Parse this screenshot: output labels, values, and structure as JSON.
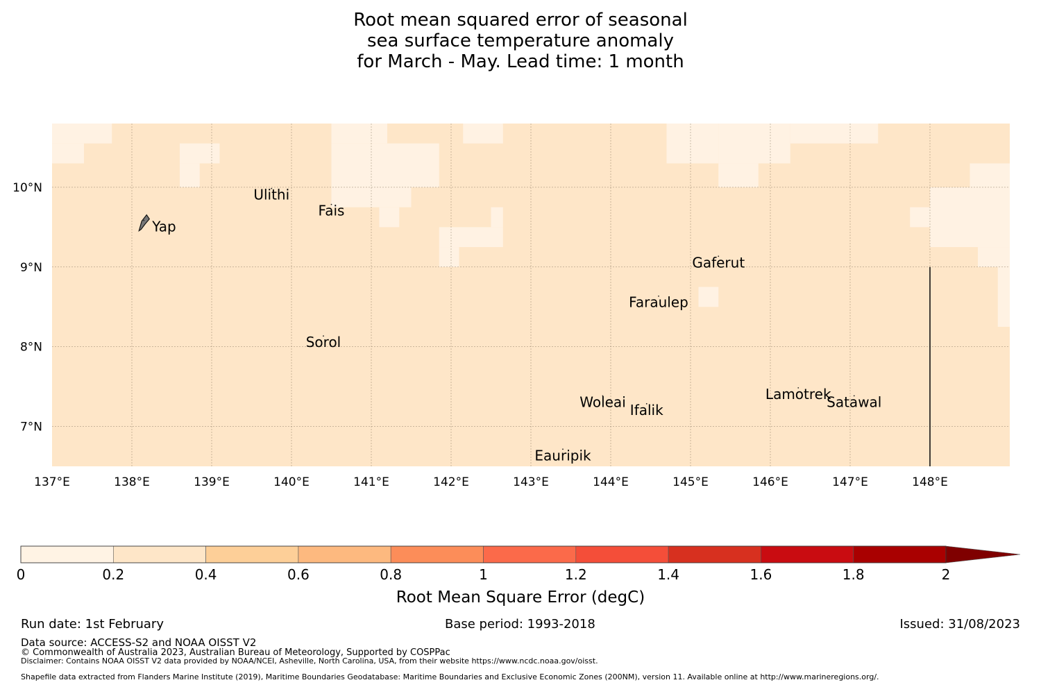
{
  "title": {
    "line1": "Root mean squared error of seasonal",
    "line2": "sea surface temperature anomaly",
    "line3": "for March - May. Lead time: 1 month"
  },
  "map": {
    "lon_range": [
      137,
      149
    ],
    "lat_range": [
      6.5,
      10.8
    ],
    "lon_ticks": [
      137,
      138,
      139,
      140,
      141,
      142,
      143,
      144,
      145,
      146,
      147,
      148
    ],
    "lat_ticks": [
      10,
      9,
      8,
      7
    ],
    "lon_tick_labels": [
      "137°E",
      "138°E",
      "139°E",
      "140°E",
      "141°E",
      "142°E",
      "143°E",
      "144°E",
      "145°E",
      "146°E",
      "147°E",
      "148°E"
    ],
    "lat_tick_labels": [
      "10°N",
      "9°N",
      "8°N",
      "7°N"
    ],
    "background_color": "#fee6c8",
    "light_color": "#fff2e3",
    "light_cells": [
      [
        137.0,
        137.75,
        10.55,
        10.8
      ],
      [
        137.0,
        137.4,
        10.3,
        10.55
      ],
      [
        138.6,
        139.1,
        10.3,
        10.55
      ],
      [
        138.6,
        138.85,
        10.0,
        10.3
      ],
      [
        140.5,
        141.2,
        10.55,
        10.8
      ],
      [
        140.5,
        141.85,
        10.0,
        10.55
      ],
      [
        140.5,
        141.5,
        9.75,
        10.0
      ],
      [
        141.1,
        141.35,
        9.5,
        9.75
      ],
      [
        142.15,
        142.65,
        10.55,
        10.8
      ],
      [
        142.5,
        142.65,
        9.5,
        9.75
      ],
      [
        141.85,
        142.65,
        9.25,
        9.5
      ],
      [
        141.85,
        142.1,
        9.0,
        9.25
      ],
      [
        144.7,
        145.35,
        10.3,
        10.8
      ],
      [
        145.35,
        146.25,
        10.3,
        10.8
      ],
      [
        145.35,
        145.85,
        10.0,
        10.3
      ],
      [
        146.25,
        147.35,
        10.55,
        10.8
      ],
      [
        148.5,
        149.0,
        10.0,
        10.3
      ],
      [
        148.0,
        149.0,
        9.25,
        10.0
      ],
      [
        147.75,
        148.0,
        9.5,
        9.75
      ],
      [
        148.6,
        149.0,
        9.0,
        9.25
      ],
      [
        148.85,
        149.0,
        8.25,
        9.0
      ],
      [
        145.1,
        145.35,
        8.5,
        8.75
      ]
    ],
    "boundary_line": {
      "lon": 148.0,
      "lat_from": 6.5,
      "lat_to": 9.0
    },
    "islands": [
      {
        "name": "Ulithi",
        "lon": 139.75,
        "lat": 9.95
      },
      {
        "name": "Fais",
        "lon": 140.5,
        "lat": 9.75
      },
      {
        "name": "Yap",
        "lon": 138.15,
        "lat": 9.55
      },
      {
        "name": "Gaferut",
        "lon": 145.35,
        "lat": 9.1
      },
      {
        "name": "Faraulep",
        "lon": 144.6,
        "lat": 8.6
      },
      {
        "name": "Sorol",
        "lon": 140.4,
        "lat": 8.1
      },
      {
        "name": "Woleai",
        "lon": 143.9,
        "lat": 7.35
      },
      {
        "name": "Ifalik",
        "lon": 144.45,
        "lat": 7.25
      },
      {
        "name": "Lamotrek",
        "lon": 146.35,
        "lat": 7.45
      },
      {
        "name": "Satawal",
        "lon": 147.05,
        "lat": 7.35
      },
      {
        "name": "Eauripik",
        "lon": 143.4,
        "lat": 6.68
      }
    ]
  },
  "colorbar": {
    "title": "Root Mean Square Error (degC)",
    "ticks": [
      0,
      0.2,
      0.4,
      0.6,
      0.8,
      1,
      1.2,
      1.4,
      1.6,
      1.8,
      2
    ],
    "tick_labels": [
      "0",
      "0.2",
      "0.4",
      "0.6",
      "0.8",
      "1",
      "1.2",
      "1.4",
      "1.6",
      "1.8",
      "2"
    ],
    "colors": [
      "#fff3e4",
      "#fee6c8",
      "#fdcf98",
      "#fdb97f",
      "#fc8d59",
      "#fb6a4a",
      "#f44e39",
      "#d7301f",
      "#c90c11",
      "#a90000"
    ],
    "extend_color": "#7f0000"
  },
  "footer": {
    "run_date": "Run date: 1st February",
    "base_period": "Base period: 1993-2018",
    "issued": "Issued: 31/08/2023",
    "data_source": "Data source: ACCESS-S2 and NOAA OISST V2",
    "copyright": "© Commonwealth of Australia 2023, Australian Bureau of Meteorology, Supported by COSPPac",
    "disclaimer": "Disclaimer: Contains NOAA OISST V2 data provided by NOAA/NCEI, Asheville, North Carolina, USA, from their website https://www.ncdc.noaa.gov/oisst.",
    "shapefile": "Shapefile data extracted from Flanders Marine Institute (2019), Maritime Boundaries Geodatabase: Maritime Boundaries and Exclusive Economic Zones (200NM), version 11. Available online at http://www.marineregions.org/."
  }
}
